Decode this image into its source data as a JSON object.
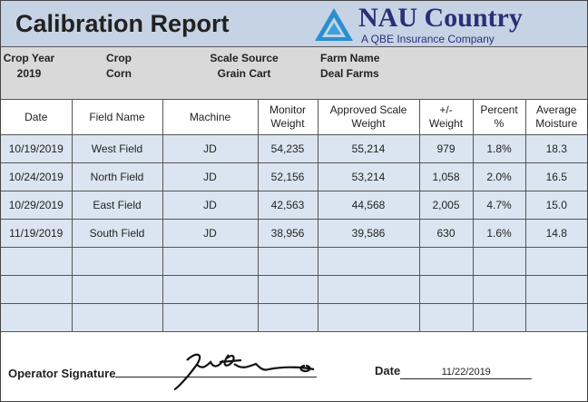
{
  "header": {
    "title": "Calibration Report",
    "logo_name": "NAU Country",
    "logo_tagline": "A QBE Insurance Company"
  },
  "info": [
    {
      "label": "Crop Year",
      "value": "2019"
    },
    {
      "label": "Crop",
      "value": "Corn"
    },
    {
      "label": "Scale Source",
      "value": "Grain Cart"
    },
    {
      "label": "Farm Name",
      "value": "Deal Farms"
    }
  ],
  "table": {
    "columns": [
      "Date",
      "Field Name",
      "Machine",
      "Monitor Weight",
      "Approved Scale Weight",
      "+/- Weight",
      "Percent %",
      "Average Moisture"
    ],
    "rows": [
      [
        "10/19/2019",
        "West Field",
        "JD",
        "54,235",
        "55,214",
        "979",
        "1.8%",
        "18.3"
      ],
      [
        "10/24/2019",
        "North Field",
        "JD",
        "52,156",
        "53,214",
        "1,058",
        "2.0%",
        "16.5"
      ],
      [
        "10/29/2019",
        "East Field",
        "JD",
        "42,563",
        "44,568",
        "2,005",
        "4.7%",
        "15.0"
      ],
      [
        "11/19/2019",
        "South Field",
        "JD",
        "38,956",
        "39,586",
        "630",
        "1.6%",
        "14.8"
      ]
    ]
  },
  "footer": {
    "signature_label": "Operator Signature",
    "date_label": "Date",
    "date_value": "11/22/2019"
  }
}
